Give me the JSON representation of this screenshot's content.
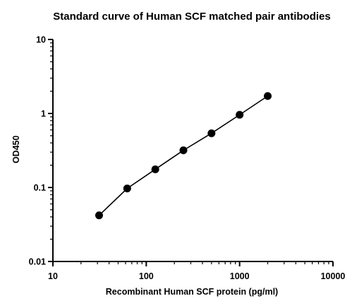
{
  "chart_data": {
    "type": "scatter",
    "title": "Standard curve of Human SCF matched pair antibodies",
    "xlabel": "Recombinant Human SCF protein (pg/ml)",
    "ylabel": "OD450",
    "x_scale": "log",
    "y_scale": "log",
    "xlim": [
      10,
      10000
    ],
    "ylim": [
      0.01,
      10
    ],
    "x_ticks": [
      "10",
      "100",
      "1000",
      "10000"
    ],
    "y_ticks": [
      "0.01",
      "0.1",
      "1",
      "10"
    ],
    "grid": false,
    "series": [
      {
        "x": [
          31.25,
          62.5,
          125,
          250,
          500,
          1000,
          2000
        ],
        "y": [
          0.042,
          0.097,
          0.176,
          0.318,
          0.54,
          0.96,
          1.72
        ],
        "fit_line": true
      }
    ]
  }
}
